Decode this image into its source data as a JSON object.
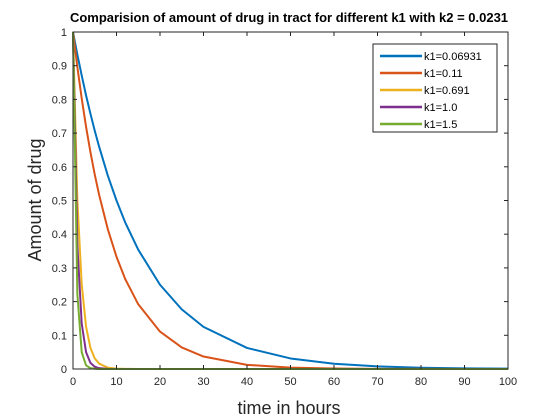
{
  "chart_data": {
    "type": "line",
    "title": "Comparision of amount of drug in tract for different k1 with k2 = 0.0231",
    "xlabel": "time in hours",
    "ylabel": "Amount of drug",
    "xlim": [
      0,
      100
    ],
    "ylim": [
      0,
      1
    ],
    "xticks": [
      0,
      10,
      20,
      30,
      40,
      50,
      60,
      70,
      80,
      90,
      100
    ],
    "yticks": [
      0,
      0.1,
      0.2,
      0.3,
      0.4,
      0.5,
      0.6,
      0.7,
      0.8,
      0.9,
      1
    ],
    "xtick_labels": [
      "0",
      "10",
      "20",
      "30",
      "40",
      "50",
      "60",
      "70",
      "80",
      "90",
      "100"
    ],
    "ytick_labels": [
      "0",
      "0.1",
      "0.2",
      "0.3",
      "0.4",
      "0.5",
      "0.6",
      "0.7",
      "0.8",
      "0.9",
      "1"
    ],
    "grid": false,
    "legend_position": "top-right",
    "x": [
      0,
      1,
      2,
      3,
      4,
      5,
      6,
      8,
      10,
      12,
      15,
      20,
      25,
      30,
      40,
      50,
      60,
      70,
      80,
      90,
      100
    ],
    "series": [
      {
        "name": "k1=0.06931",
        "color": "#0072BD",
        "values": [
          1,
          0.933,
          0.871,
          0.812,
          0.758,
          0.707,
          0.66,
          0.574,
          0.5,
          0.435,
          0.354,
          0.25,
          0.177,
          0.125,
          0.0625,
          0.0313,
          0.0156,
          0.0078,
          0.0039,
          0.002,
          0.001
        ]
      },
      {
        "name": "k1=0.11",
        "color": "#D95319",
        "values": [
          1,
          0.896,
          0.803,
          0.719,
          0.644,
          0.577,
          0.517,
          0.415,
          0.333,
          0.267,
          0.192,
          0.111,
          0.064,
          0.037,
          0.0123,
          0.0041,
          0.0014,
          0.0005,
          0.0002,
          0.0001,
          0
        ]
      },
      {
        "name": "k1=0.691",
        "color": "#EDB120",
        "values": [
          1,
          0.501,
          0.251,
          0.126,
          0.063,
          0.0316,
          0.0158,
          0.004,
          0.001,
          0.0003,
          0,
          0,
          0,
          0,
          0,
          0,
          0,
          0,
          0,
          0,
          0
        ]
      },
      {
        "name": "k1=1.0",
        "color": "#7E2F8E",
        "values": [
          1,
          0.368,
          0.135,
          0.05,
          0.018,
          0.0067,
          0.0025,
          0.0003,
          0,
          0,
          0,
          0,
          0,
          0,
          0,
          0,
          0,
          0,
          0,
          0,
          0
        ]
      },
      {
        "name": "k1=1.5",
        "color": "#77AC30",
        "values": [
          1,
          0.223,
          0.05,
          0.011,
          0.0025,
          0.0006,
          0.0001,
          0,
          0,
          0,
          0,
          0,
          0,
          0,
          0,
          0,
          0,
          0,
          0,
          0,
          0
        ]
      }
    ]
  }
}
